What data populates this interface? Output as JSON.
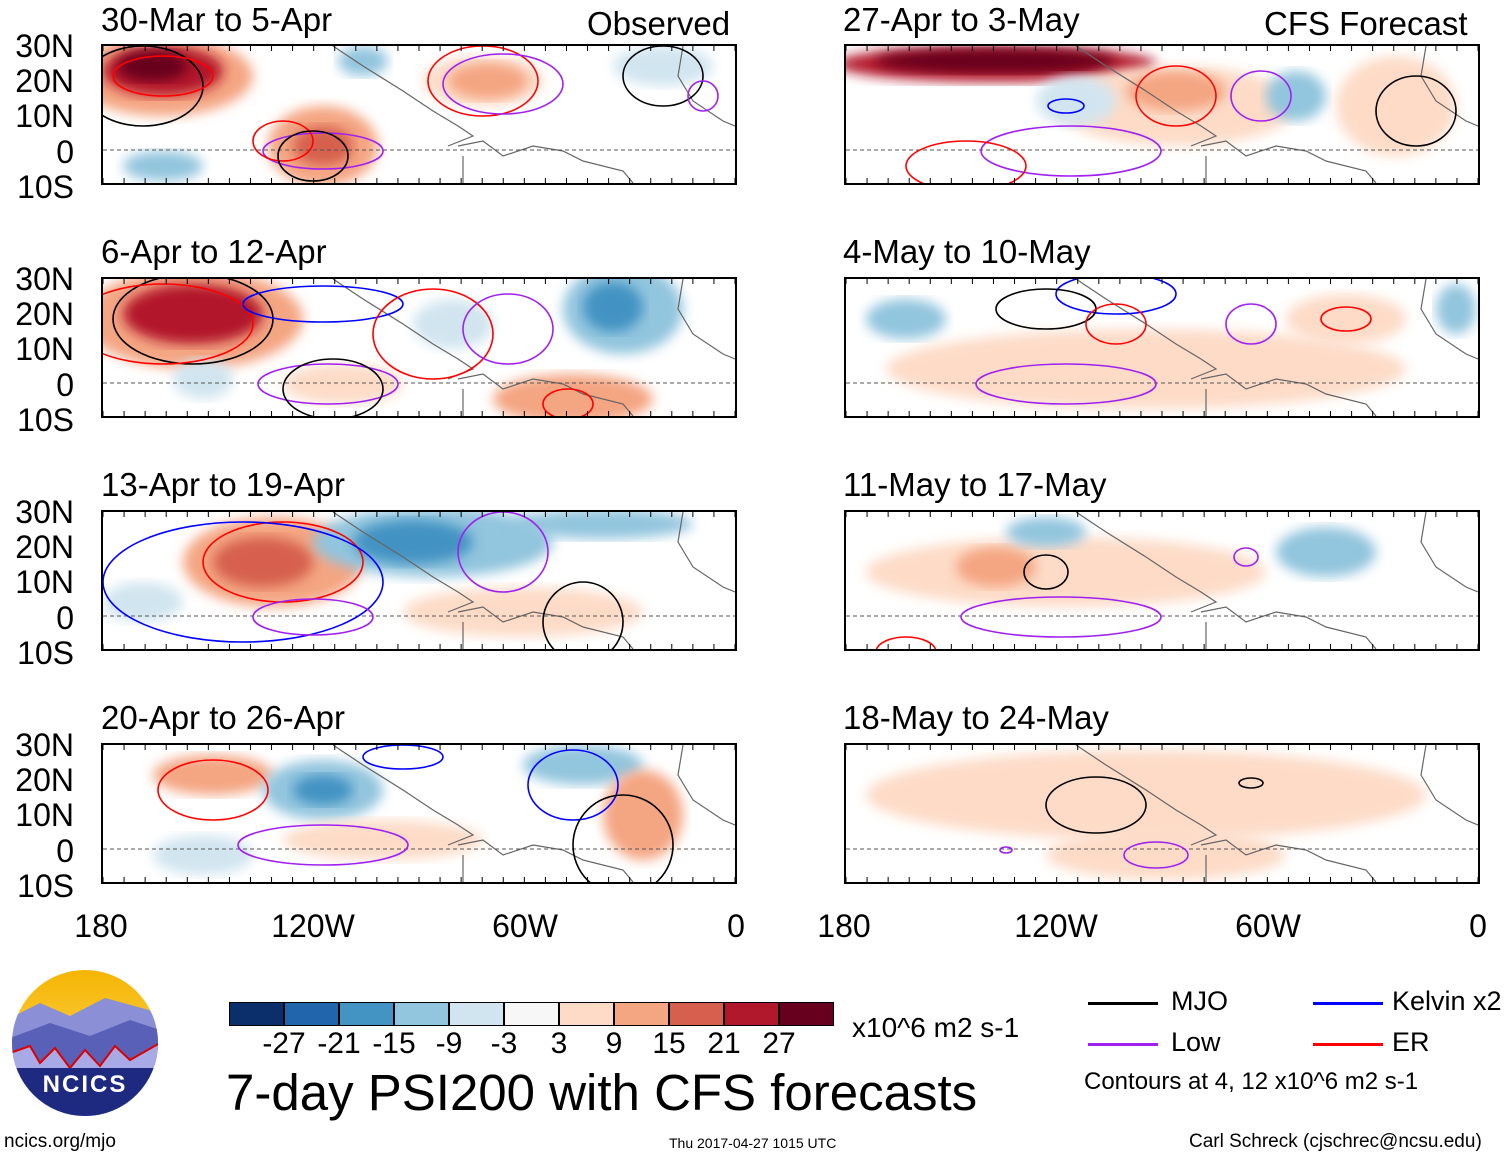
{
  "header": {
    "observed_label": "Observed",
    "forecast_label": "CFS Forecast"
  },
  "panels": {
    "observed": [
      "30-Mar to 5-Apr",
      "6-Apr to 12-Apr",
      "13-Apr to 19-Apr",
      "20-Apr to 26-Apr"
    ],
    "forecast": [
      "27-Apr to 3-May",
      "4-May to 10-May",
      "11-May to 17-May",
      "18-May to 24-May"
    ]
  },
  "axes": {
    "lat_labels": [
      "30N",
      "20N",
      "10N",
      "0",
      "10S"
    ],
    "lon_labels": [
      "180",
      "120W",
      "60W",
      "0"
    ]
  },
  "colorbar": {
    "labels": [
      "-27",
      "-21",
      "-15",
      "-9",
      "-3",
      "3",
      "9",
      "15",
      "21",
      "27"
    ],
    "colors": [
      "#0b2f6b",
      "#2166ac",
      "#4393c3",
      "#92c5de",
      "#d1e5f0",
      "#f7f7f7",
      "#fddbc7",
      "#f4a582",
      "#d6604d",
      "#b2182b",
      "#67001f"
    ],
    "units": "x10^6 m2 s-1"
  },
  "title": "7-day PSI200 with CFS forecasts",
  "timestamp": "Thu 2017-04-27 1015 UTC",
  "legend": {
    "items": [
      {
        "label": "MJO",
        "color": "#000000"
      },
      {
        "label": "Kelvin x2",
        "color": "#0000ff"
      },
      {
        "label": "Low",
        "color": "#a020f0"
      },
      {
        "label": "ER",
        "color": "#ff0000"
      }
    ],
    "contours_note": "Contours at 4, 12 x10^6 m2 s-1"
  },
  "logo": {
    "text": "NCICS"
  },
  "footer": {
    "url": "ncics.org/mjo",
    "credit": "Carl Schreck (cjschrec@ncsu.edu)"
  }
}
